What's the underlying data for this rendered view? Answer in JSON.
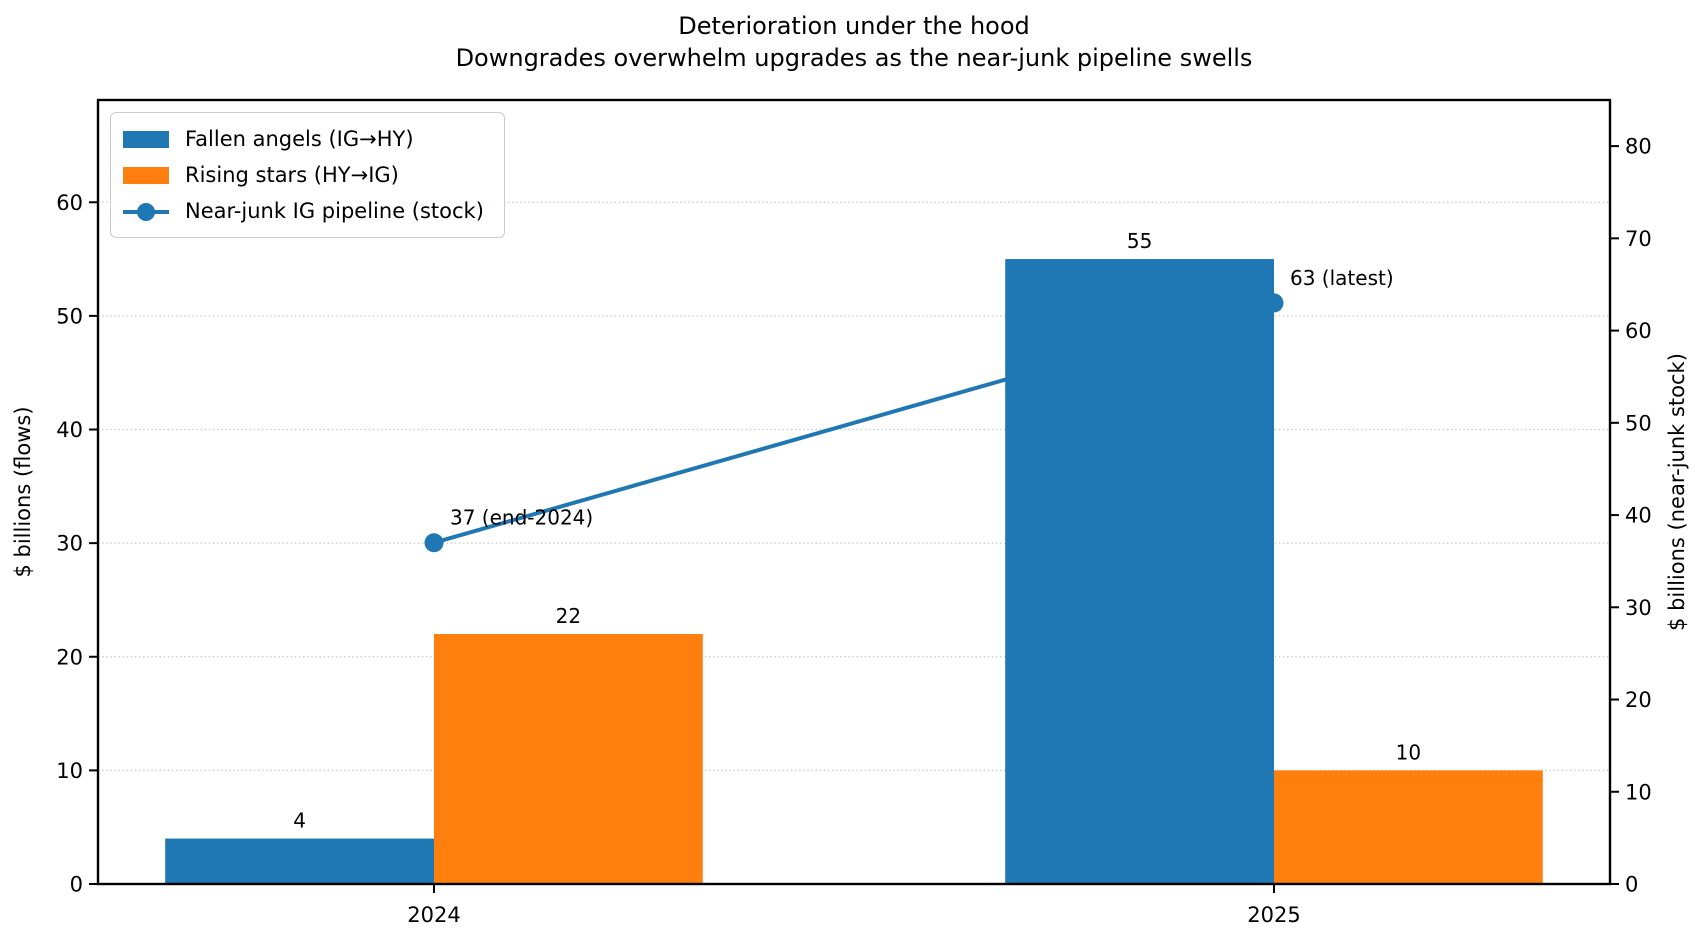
{
  "figure": {
    "title_line1": "Deterioration under the hood",
    "title_line2": "Downgrades overwhelm upgrades as the near-junk pipeline swells"
  },
  "chart_data": {
    "type": "bar",
    "subtype": "grouped-bars-with-line-on-secondary-axis",
    "title": "Deterioration under the hood",
    "subtitle": "Downgrades overwhelm upgrades as the near-junk pipeline swells",
    "categories": [
      "2024",
      "2025"
    ],
    "bar_series": [
      {
        "name": "Fallen angels (IG→HY)",
        "values": [
          4,
          55
        ],
        "labels": [
          "4",
          "55"
        ],
        "color": "#1f77b4",
        "axis": "left"
      },
      {
        "name": "Rising stars (HY→IG)",
        "values": [
          22,
          10
        ],
        "labels": [
          "22",
          "10"
        ],
        "color": "#ff7f0e",
        "axis": "left"
      }
    ],
    "line_series": {
      "name": "Near-junk IG pipeline (stock)",
      "values": [
        37,
        63
      ],
      "annotations": [
        "37 (end-2024)",
        "63 (latest)"
      ],
      "color": "#1f77b4",
      "axis": "right",
      "marker": "circle"
    },
    "left_axis": {
      "label": "$ billions (flows)",
      "ticks": [
        0,
        10,
        20,
        30,
        40,
        50,
        60
      ],
      "lim": [
        0,
        69
      ]
    },
    "right_axis": {
      "label": "$ billions (near-junk stock)",
      "ticks": [
        0,
        10,
        20,
        30,
        40,
        50,
        60,
        70,
        80
      ],
      "lim": [
        0,
        85
      ]
    },
    "xlim": [
      -0.4,
      1.4
    ],
    "bar_width": 0.32,
    "grid": {
      "axis": "y",
      "which": "left-ticks",
      "style": "dotted",
      "color": "#c8c8c8"
    },
    "legend": {
      "position": "upper-left"
    },
    "text_color": "#000000",
    "spine_color": "#000000"
  }
}
